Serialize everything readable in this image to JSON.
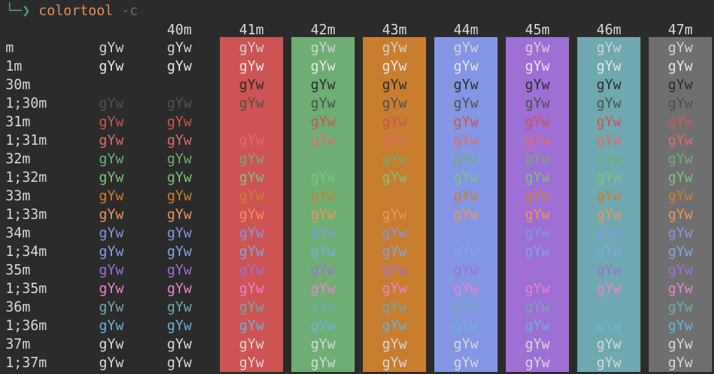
{
  "prompt": {
    "corner": "└─❯",
    "command": "colortool",
    "flag": "-c"
  },
  "sample_text": "gYw",
  "backgrounds": [
    {
      "code": "",
      "color": null
    },
    {
      "code": "40m",
      "color": null
    },
    {
      "code": "41m",
      "color": "#cd5452"
    },
    {
      "code": "42m",
      "color": "#6fae72"
    },
    {
      "code": "43m",
      "color": "#c97d2f"
    },
    {
      "code": "44m",
      "color": "#8296e3"
    },
    {
      "code": "45m",
      "color": "#9e6fd5"
    },
    {
      "code": "46m",
      "color": "#6fa8b0"
    },
    {
      "code": "47m",
      "color": "#6f6f6f"
    }
  ],
  "rows": [
    {
      "label": "m",
      "fg": "#d2d2d2"
    },
    {
      "label": "1m",
      "fg": "#e6e6e6"
    },
    {
      "label": "30m",
      "fg": "#2c2c2c"
    },
    {
      "label": "1;30m",
      "fg": "#505050"
    },
    {
      "label": "31m",
      "fg": "#cd5452"
    },
    {
      "label": "1;31m",
      "fg": "#e06a6a"
    },
    {
      "label": "32m",
      "fg": "#6fae72"
    },
    {
      "label": "1;32m",
      "fg": "#7fc27c"
    },
    {
      "label": "33m",
      "fg": "#c97d2f"
    },
    {
      "label": "1;33m",
      "fg": "#f0935a"
    },
    {
      "label": "34m",
      "fg": "#8296e3"
    },
    {
      "label": "1;34m",
      "fg": "#7fa4e6"
    },
    {
      "label": "35m",
      "fg": "#9e6fd5"
    },
    {
      "label": "1;35m",
      "fg": "#e882cf"
    },
    {
      "label": "36m",
      "fg": "#6fa8b0"
    },
    {
      "label": "1;36m",
      "fg": "#66b3dc"
    },
    {
      "label": "37m",
      "fg": "#d8d8d8"
    },
    {
      "label": "1;37m",
      "fg": "#d8d8d8"
    }
  ]
}
